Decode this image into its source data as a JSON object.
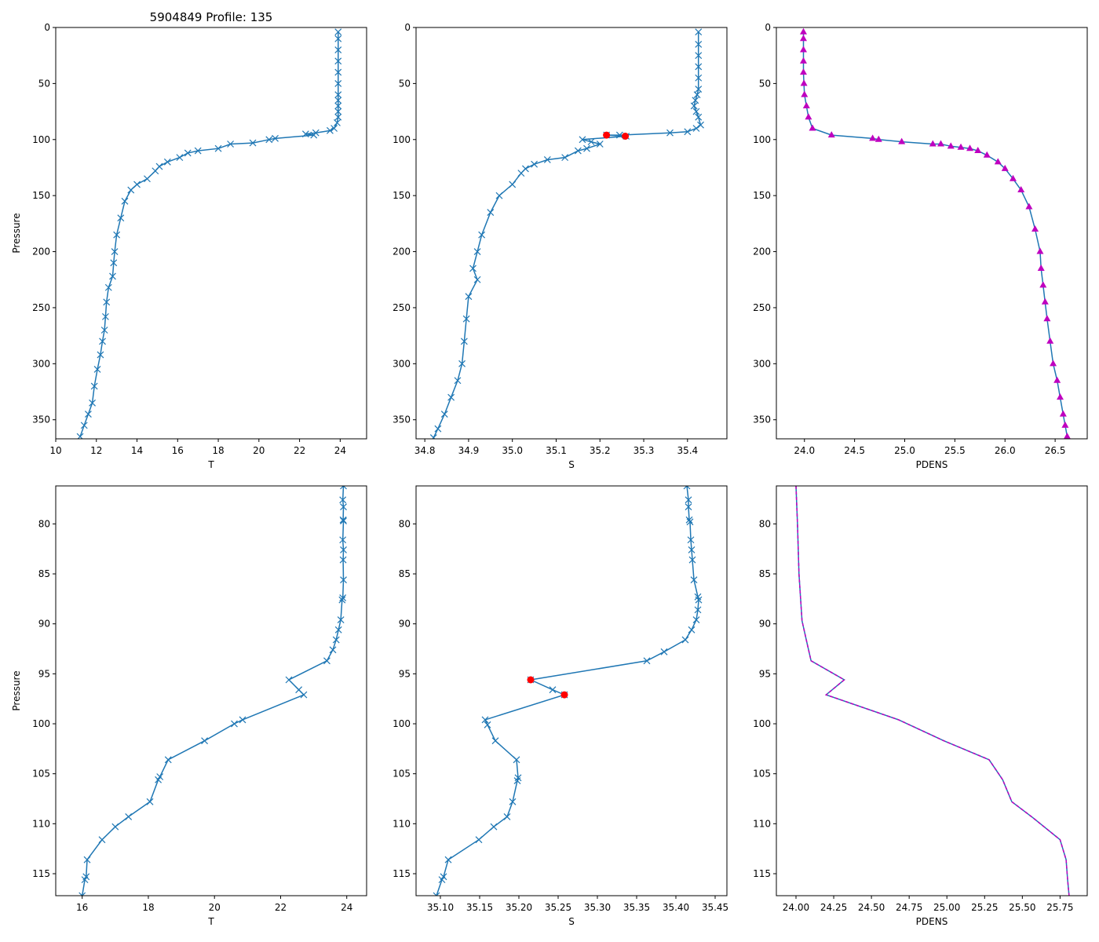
{
  "figure_title": "5904849 Profile: 135",
  "colors": {
    "line": "#1f77b4",
    "density_marker": "#bf00bf",
    "flag_marker": "#ff0000",
    "axis": "#000000"
  },
  "chart_data": [
    {
      "id": "top-temperature",
      "type": "line",
      "title": "5904849 Profile: 135",
      "xlabel": "T",
      "ylabel": "Pressure",
      "xlim": [
        10,
        25.3
      ],
      "ylim": [
        367,
        0
      ],
      "xticks": [
        "10",
        "12",
        "14",
        "16",
        "18",
        "20",
        "22",
        "24"
      ],
      "yticks": [
        "0",
        "50",
        "100",
        "150",
        "200",
        "250",
        "300",
        "350"
      ],
      "marker": "x",
      "series": [
        {
          "name": "T",
          "x": [
            23.9,
            23.9,
            23.9,
            23.9,
            23.9,
            23.9,
            23.9,
            23.9,
            23.9,
            23.9,
            23.9,
            23.85,
            23.7,
            23.5,
            22.8,
            22.3,
            22.7,
            20.8,
            20.5,
            19.7,
            18.6,
            18.0,
            17.0,
            16.5,
            16.1,
            15.5,
            15.1,
            14.9,
            14.5,
            14.0,
            13.7,
            13.4,
            13.2,
            13.0,
            12.9,
            12.85,
            12.8,
            12.6,
            12.5,
            12.45,
            12.4,
            12.3,
            12.2,
            12.05,
            11.9,
            11.8,
            11.6,
            11.4,
            11.2
          ],
          "y": [
            4,
            10,
            20,
            30,
            40,
            50,
            60,
            65,
            70,
            75,
            80,
            85,
            90,
            92,
            94,
            95,
            96,
            99,
            100,
            103,
            104,
            108,
            110,
            112,
            116,
            120,
            124,
            128,
            135,
            140,
            145,
            155,
            170,
            185,
            200,
            210,
            222,
            232,
            245,
            258,
            270,
            280,
            292,
            305,
            320,
            335,
            345,
            355,
            365
          ]
        }
      ]
    },
    {
      "id": "top-salinity",
      "type": "line",
      "xlabel": "S",
      "ylabel": "",
      "xlim": [
        34.78,
        35.49
      ],
      "ylim": [
        367,
        0
      ],
      "xticks": [
        "34.8",
        "34.9",
        "35.0",
        "35.1",
        "35.2",
        "35.3",
        "35.4"
      ],
      "yticks": [
        "0",
        "50",
        "100",
        "150",
        "200",
        "250",
        "300",
        "350"
      ],
      "marker": "x",
      "series": [
        {
          "name": "S",
          "x": [
            35.425,
            35.425,
            35.425,
            35.425,
            35.425,
            35.425,
            35.422,
            35.418,
            35.415,
            35.42,
            35.425,
            35.43,
            35.42,
            35.4,
            35.36,
            35.245,
            35.215,
            35.26,
            35.16,
            35.18,
            35.2,
            35.17,
            35.15,
            35.12,
            35.08,
            35.05,
            35.03,
            35.02,
            35.0,
            34.97,
            34.95,
            34.93,
            34.92,
            34.91,
            34.92,
            34.9,
            34.895,
            34.89,
            34.885,
            34.875,
            34.86,
            34.845,
            34.83,
            34.82
          ],
          "y": [
            4,
            15,
            25,
            35,
            45,
            55,
            60,
            65,
            70,
            75,
            80,
            87,
            90,
            93,
            94,
            96,
            96,
            97,
            100,
            102,
            104,
            108,
            110,
            116,
            118,
            122,
            126,
            130,
            140,
            150,
            165,
            185,
            200,
            215,
            225,
            240,
            260,
            280,
            300,
            315,
            330,
            345,
            358,
            366
          ]
        }
      ],
      "flags": {
        "x": [
          35.215,
          35.258
        ],
        "y": [
          96,
          97
        ]
      }
    },
    {
      "id": "top-density",
      "type": "line",
      "xlabel": "PDENS",
      "ylabel": "",
      "xlim": [
        23.72,
        26.82
      ],
      "ylim": [
        367,
        0
      ],
      "xticks": [
        "24.0",
        "24.5",
        "25.0",
        "25.5",
        "26.0",
        "26.5"
      ],
      "yticks": [
        "0",
        "50",
        "100",
        "150",
        "200",
        "250",
        "300",
        "350"
      ],
      "marker": "triangle",
      "series": [
        {
          "name": "PDENS",
          "x": [
            23.99,
            23.99,
            23.99,
            23.99,
            23.99,
            23.995,
            24.0,
            24.02,
            24.04,
            24.08,
            24.27,
            24.68,
            24.74,
            24.97,
            25.28,
            25.36,
            25.46,
            25.56,
            25.65,
            25.73,
            25.82,
            25.93,
            26.0,
            26.08,
            26.16,
            26.24,
            26.3,
            26.35,
            26.36,
            26.38,
            26.4,
            26.42,
            26.45,
            26.48,
            26.52,
            26.55,
            26.58,
            26.6,
            26.62
          ],
          "y": [
            4,
            10,
            20,
            30,
            40,
            50,
            60,
            70,
            80,
            90,
            96,
            99,
            100,
            102,
            104,
            104,
            106,
            107,
            108,
            110,
            114,
            120,
            126,
            135,
            145,
            160,
            180,
            200,
            215,
            230,
            245,
            260,
            280,
            300,
            315,
            330,
            345,
            355,
            365
          ]
        }
      ]
    },
    {
      "id": "bottom-temperature",
      "type": "line",
      "xlabel": "T",
      "ylabel": "Pressure",
      "xlim": [
        15.2,
        24.6
      ],
      "ylim": [
        117.2,
        76.2
      ],
      "xticks": [
        "16",
        "18",
        "20",
        "22",
        "24"
      ],
      "yticks": [
        "80",
        "85",
        "90",
        "95",
        "100",
        "105",
        "110",
        "115"
      ],
      "marker": "x",
      "series": [
        {
          "name": "T",
          "x": [
            23.9,
            23.88,
            23.9,
            23.89,
            23.9,
            23.88,
            23.9,
            23.89,
            23.9,
            23.88,
            23.86,
            23.82,
            23.75,
            23.68,
            23.58,
            23.4,
            22.25,
            22.55,
            22.7,
            20.85,
            20.6,
            19.7,
            18.6,
            18.35,
            18.3,
            18.05,
            17.4,
            17.0,
            16.6,
            16.15,
            16.12,
            16.08,
            16.0
          ],
          "y": [
            76.2,
            77.6,
            78.3,
            79.6,
            79.7,
            81.6,
            82.6,
            83.6,
            85.6,
            87.4,
            87.6,
            89.6,
            90.6,
            91.6,
            92.6,
            93.7,
            95.6,
            96.6,
            97.1,
            99.6,
            100.0,
            101.7,
            103.6,
            105.3,
            105.6,
            107.8,
            109.3,
            110.3,
            111.6,
            113.6,
            115.3,
            115.6,
            117.2
          ]
        }
      ]
    },
    {
      "id": "bottom-salinity",
      "type": "line",
      "xlabel": "S",
      "ylabel": "",
      "xlim": [
        35.069,
        35.465
      ],
      "ylim": [
        117.2,
        76.2
      ],
      "xticks": [
        "35.10",
        "35.15",
        "35.20",
        "35.25",
        "35.30",
        "35.35",
        "35.40",
        "35.45"
      ],
      "yticks": [
        "80",
        "85",
        "90",
        "95",
        "100",
        "105",
        "110",
        "115"
      ],
      "marker": "x",
      "series": [
        {
          "name": "S",
          "x": [
            35.414,
            35.416,
            35.416,
            35.417,
            35.418,
            35.419,
            35.42,
            35.421,
            35.423,
            35.428,
            35.429,
            35.428,
            35.426,
            35.42,
            35.412,
            35.385,
            35.363,
            35.215,
            35.243,
            35.258,
            35.157,
            35.16,
            35.17,
            35.197,
            35.199,
            35.198,
            35.192,
            35.185,
            35.168,
            35.149,
            35.11,
            35.104,
            35.102,
            35.095
          ],
          "y": [
            76.2,
            77.6,
            78.3,
            79.6,
            79.8,
            81.6,
            82.6,
            83.6,
            85.6,
            87.3,
            87.6,
            88.6,
            89.6,
            90.6,
            91.6,
            92.8,
            93.7,
            95.6,
            96.6,
            97.1,
            99.6,
            100.1,
            101.7,
            103.6,
            105.4,
            105.7,
            107.8,
            109.3,
            110.3,
            111.6,
            113.6,
            115.3,
            115.6,
            117.2
          ]
        }
      ],
      "flags": {
        "x": [
          35.215,
          35.258
        ],
        "y": [
          95.6,
          97.1
        ]
      }
    },
    {
      "id": "bottom-density",
      "type": "line",
      "xlabel": "PDENS",
      "ylabel": "",
      "xlim": [
        23.87,
        25.93
      ],
      "ylim": [
        117.2,
        76.2
      ],
      "xticks": [
        "24.00",
        "24.25",
        "24.50",
        "24.75",
        "25.00",
        "25.25",
        "25.50",
        "25.75"
      ],
      "yticks": [
        "80",
        "85",
        "90",
        "95",
        "100",
        "105",
        "110",
        "115"
      ],
      "marker": "none",
      "series": [
        {
          "name": "PDENS",
          "x": [
            24.0,
            24.01,
            24.02,
            24.04,
            24.07,
            24.1,
            24.32,
            24.2,
            24.68,
            24.98,
            25.28,
            25.37,
            25.43,
            25.57,
            25.75,
            25.79,
            25.8,
            25.81
          ],
          "y": [
            76.2,
            80.0,
            85.0,
            89.7,
            91.7,
            93.7,
            95.6,
            97.1,
            99.6,
            101.7,
            103.6,
            105.6,
            107.8,
            109.4,
            111.6,
            113.6,
            115.6,
            117.2
          ]
        }
      ]
    }
  ]
}
